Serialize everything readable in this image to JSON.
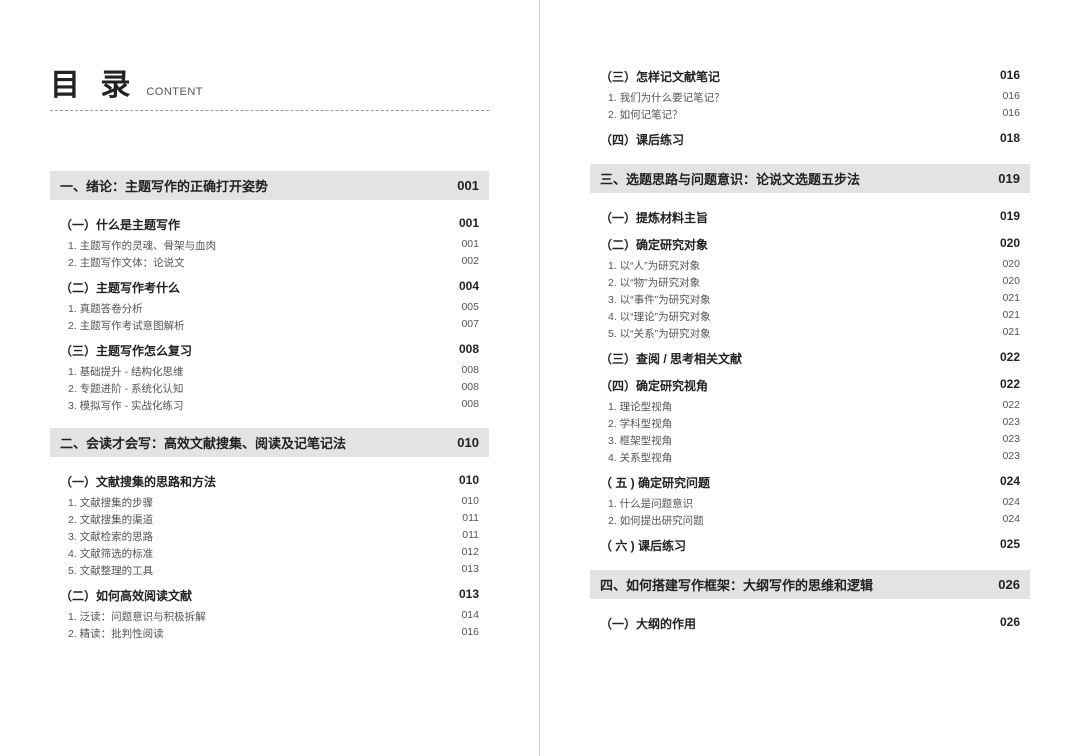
{
  "header": {
    "title_cn": "目 录",
    "title_en": "CONTENT"
  },
  "left": [
    {
      "type": "chapter",
      "title": "一、绪论：主题写作的正确打开姿势",
      "page": "001"
    },
    {
      "type": "section",
      "title": "（一）什么是主题写作",
      "page": "001"
    },
    {
      "type": "item",
      "title": "1. 主题写作的灵魂、骨架与血肉",
      "page": "001"
    },
    {
      "type": "item",
      "title": "2. 主题写作文体：论说文",
      "page": "002"
    },
    {
      "type": "section",
      "title": "（二）主题写作考什么",
      "page": "004"
    },
    {
      "type": "item",
      "title": "1. 真题答卷分析",
      "page": "005"
    },
    {
      "type": "item",
      "title": "2. 主题写作考试意图解析",
      "page": "007"
    },
    {
      "type": "section",
      "title": "（三）主题写作怎么复习",
      "page": "008"
    },
    {
      "type": "item",
      "title": "1. 基础提升 - 结构化思维",
      "page": "008"
    },
    {
      "type": "item",
      "title": "2. 专题进阶 - 系统化认知",
      "page": "008"
    },
    {
      "type": "item",
      "title": "3. 模拟写作 - 实战化练习",
      "page": "008"
    },
    {
      "type": "chapter",
      "title": "二、会读才会写：高效文献搜集、阅读及记笔记法",
      "page": "010"
    },
    {
      "type": "section",
      "title": "（一）文献搜集的思路和方法",
      "page": "010"
    },
    {
      "type": "item",
      "title": "1. 文献搜集的步骤",
      "page": "010"
    },
    {
      "type": "item",
      "title": "2. 文献搜集的渠道",
      "page": "011"
    },
    {
      "type": "item",
      "title": "3. 文献检索的思路",
      "page": "011"
    },
    {
      "type": "item",
      "title": "4. 文献筛选的标准",
      "page": "012"
    },
    {
      "type": "item",
      "title": "5. 文献整理的工具",
      "page": "013"
    },
    {
      "type": "section",
      "title": "（二）如何高效阅读文献",
      "page": "013"
    },
    {
      "type": "item",
      "title": "1. 泛读：问题意识与积极拆解",
      "page": "014"
    },
    {
      "type": "item",
      "title": "2. 精读：批判性阅读",
      "page": "016"
    }
  ],
  "right": [
    {
      "type": "section",
      "title": "（三）怎样记文献笔记",
      "page": "016"
    },
    {
      "type": "item",
      "title": "1. 我们为什么要记笔记？",
      "page": "016"
    },
    {
      "type": "item",
      "title": "2. 如何记笔记？",
      "page": "016"
    },
    {
      "type": "section",
      "title": "（四）课后练习",
      "page": "018"
    },
    {
      "type": "chapter",
      "title": "三、选题思路与问题意识：论说文选题五步法",
      "page": "019"
    },
    {
      "type": "section",
      "title": "（一）提炼材料主旨",
      "page": "019"
    },
    {
      "type": "section",
      "title": "（二）确定研究对象",
      "page": "020"
    },
    {
      "type": "item",
      "title": "1. 以“人”为研究对象",
      "page": "020"
    },
    {
      "type": "item",
      "title": "2. 以“物”为研究对象",
      "page": "020"
    },
    {
      "type": "item",
      "title": "3. 以“事件”为研究对象",
      "page": "021"
    },
    {
      "type": "item",
      "title": "4. 以“理论”为研究对象",
      "page": "021"
    },
    {
      "type": "item",
      "title": "5. 以“关系”为研究对象",
      "page": "021"
    },
    {
      "type": "section",
      "title": "（三）查阅 / 思考相关文献",
      "page": "022"
    },
    {
      "type": "section",
      "title": "（四）确定研究视角",
      "page": "022"
    },
    {
      "type": "item",
      "title": "1. 理论型视角",
      "page": "022"
    },
    {
      "type": "item",
      "title": "2. 学科型视角",
      "page": "023"
    },
    {
      "type": "item",
      "title": "3. 框架型视角",
      "page": "023"
    },
    {
      "type": "item",
      "title": "4. 关系型视角",
      "page": "023"
    },
    {
      "type": "section",
      "title": "（ 五 ) 确定研究问题",
      "page": "024"
    },
    {
      "type": "item",
      "title": "1. 什么是问题意识",
      "page": "024"
    },
    {
      "type": "item",
      "title": "2. 如何提出研究问题",
      "page": "024"
    },
    {
      "type": "section",
      "title": "（ 六 ) 课后练习",
      "page": "025"
    },
    {
      "type": "chapter",
      "title": "四、如何搭建写作框架：大纲写作的思维和逻辑",
      "page": "026"
    },
    {
      "type": "section",
      "title": "（一）大纲的作用",
      "page": "026"
    }
  ]
}
